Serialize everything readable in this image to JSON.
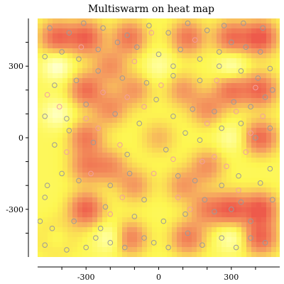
{
  "chart_data": {
    "type": "heatmap",
    "title": "Multiswarm on heat map",
    "xlabel": "",
    "ylabel": "",
    "xlim": [
      -500,
      500
    ],
    "ylim": [
      -500,
      500
    ],
    "x_ticks": [
      -300,
      0,
      300
    ],
    "y_ticks": [
      300,
      0,
      -300
    ],
    "x_minor_step": 100,
    "y_minor_step": 100,
    "grid": false,
    "colors": {
      "high": "#f06050",
      "mid_high": "#f5a060",
      "mid": "#fdf050",
      "low": "#ffffa0",
      "lowest": "#ffffff",
      "particle_gray": "#9a9a9a",
      "particle_pink": "#f2a0a0"
    },
    "peaks": [
      {
        "x": -420,
        "y": 420,
        "level": 0.85
      },
      {
        "x": -300,
        "y": 420,
        "level": 0.9
      },
      {
        "x": -120,
        "y": 420,
        "level": 0.75
      },
      {
        "x": 120,
        "y": 420,
        "level": 0.75
      },
      {
        "x": 300,
        "y": 420,
        "level": 0.8
      },
      {
        "x": 420,
        "y": 420,
        "level": 1.0
      },
      {
        "x": -300,
        "y": 200,
        "level": 0.8
      },
      {
        "x": 300,
        "y": 200,
        "level": 0.75
      },
      {
        "x": 420,
        "y": 200,
        "level": 0.85
      },
      {
        "x": 420,
        "y": 0,
        "level": 0.85
      },
      {
        "x": 300,
        "y": -300,
        "level": 0.85
      },
      {
        "x": 420,
        "y": -300,
        "level": 0.95
      },
      {
        "x": -300,
        "y": -300,
        "level": 0.9
      },
      {
        "x": -420,
        "y": -420,
        "level": 0.85
      },
      {
        "x": -120,
        "y": -420,
        "level": 0.7
      },
      {
        "x": 120,
        "y": -420,
        "level": 0.7
      },
      {
        "x": 420,
        "y": -420,
        "level": 0.85
      },
      {
        "x": -200,
        "y": 120,
        "level": 0.55
      },
      {
        "x": 200,
        "y": 120,
        "level": 0.55
      },
      {
        "x": -200,
        "y": -120,
        "level": 0.55
      },
      {
        "x": 200,
        "y": -120,
        "level": 0.55
      },
      {
        "x": -100,
        "y": 200,
        "level": 0.5
      },
      {
        "x": 100,
        "y": 200,
        "level": 0.5
      },
      {
        "x": -100,
        "y": -200,
        "level": 0.5
      },
      {
        "x": 100,
        "y": -200,
        "level": 0.5
      },
      {
        "x": 0,
        "y": 0,
        "level": 0.35
      },
      {
        "x": -300,
        "y": 0,
        "level": 0.7
      },
      {
        "x": -300,
        "y": -120,
        "level": 0.6
      },
      {
        "x": 200,
        "y": -300,
        "level": 0.6
      },
      {
        "x": -200,
        "y": 300,
        "level": 0.55
      }
    ],
    "valleys": [
      {
        "x": -420,
        "y": -420,
        "level": 0.9
      },
      {
        "x": -420,
        "y": 300,
        "level": 0.6
      },
      {
        "x": 300,
        "y": 300,
        "level": 0.5
      },
      {
        "x": -420,
        "y": 100,
        "level": 0.5
      },
      {
        "x": 0,
        "y": 300,
        "level": 0.35
      },
      {
        "x": 300,
        "y": 0,
        "level": 0.35
      },
      {
        "x": 300,
        "y": -420,
        "level": 0.45
      },
      {
        "x": -200,
        "y": -420,
        "level": 0.5
      }
    ],
    "particles_gray": [
      [
        -490,
        -350
      ],
      [
        -470,
        -450
      ],
      [
        -440,
        -380
      ],
      [
        -380,
        -470
      ],
      [
        -300,
        -460
      ],
      [
        -260,
        -420
      ],
      [
        -240,
        -380
      ],
      [
        -200,
        -440
      ],
      [
        -140,
        -460
      ],
      [
        -60,
        -420
      ],
      [
        -20,
        -440
      ],
      [
        40,
        -460
      ],
      [
        120,
        -400
      ],
      [
        180,
        -450
      ],
      [
        260,
        -420
      ],
      [
        320,
        -460
      ],
      [
        380,
        -420
      ],
      [
        440,
        -440
      ],
      [
        -100,
        -330
      ],
      [
        20,
        -350
      ],
      [
        110,
        -320
      ],
      [
        230,
        -310
      ],
      [
        300,
        -300
      ],
      [
        340,
        -270
      ],
      [
        -460,
        -200
      ],
      [
        -400,
        -150
      ],
      [
        -330,
        -180
      ],
      [
        -200,
        -200
      ],
      [
        -120,
        -150
      ],
      [
        80,
        -160
      ],
      [
        150,
        -180
      ],
      [
        260,
        -200
      ],
      [
        330,
        -160
      ],
      [
        420,
        -190
      ],
      [
        460,
        -130
      ],
      [
        -430,
        -30
      ],
      [
        -370,
        30
      ],
      [
        -270,
        -20
      ],
      [
        -130,
        -70
      ],
      [
        30,
        -50
      ],
      [
        170,
        -10
      ],
      [
        260,
        40
      ],
      [
        340,
        60
      ],
      [
        400,
        0
      ],
      [
        460,
        40
      ],
      [
        -470,
        90
      ],
      [
        -380,
        80
      ],
      [
        -300,
        140
      ],
      [
        -180,
        100
      ],
      [
        -80,
        60
      ],
      [
        60,
        90
      ],
      [
        140,
        120
      ],
      [
        230,
        110
      ],
      [
        310,
        150
      ],
      [
        380,
        130
      ],
      [
        440,
        170
      ],
      [
        470,
        200
      ],
      [
        -430,
        220
      ],
      [
        -340,
        240
      ],
      [
        -250,
        280
      ],
      [
        -150,
        250
      ],
      [
        -50,
        230
      ],
      [
        60,
        260
      ],
      [
        170,
        240
      ],
      [
        250,
        300
      ],
      [
        340,
        280
      ],
      [
        410,
        250
      ],
      [
        460,
        290
      ],
      [
        -470,
        340
      ],
      [
        -400,
        360
      ],
      [
        -330,
        330
      ],
      [
        -250,
        370
      ],
      [
        -170,
        400
      ],
      [
        -90,
        380
      ],
      [
        0,
        350
      ],
      [
        90,
        370
      ],
      [
        170,
        330
      ],
      [
        250,
        360
      ],
      [
        300,
        400
      ],
      [
        360,
        380
      ],
      [
        420,
        360
      ],
      [
        -450,
        460
      ],
      [
        -370,
        440
      ],
      [
        -310,
        480
      ],
      [
        -230,
        460
      ],
      [
        -130,
        430
      ],
      [
        -40,
        470
      ],
      [
        40,
        440
      ],
      [
        120,
        480
      ],
      [
        200,
        450
      ],
      [
        270,
        470
      ],
      [
        350,
        480
      ],
      [
        430,
        460
      ],
      [
        -10,
        160
      ],
      [
        110,
        20
      ],
      [
        -220,
        -290
      ],
      [
        -350,
        -350
      ],
      [
        380,
        -350
      ],
      [
        190,
        -260
      ],
      [
        -470,
        -250
      ],
      [
        470,
        -260
      ],
      [
        -60,
        -260
      ],
      [
        60,
        300
      ]
    ],
    "particles_pink": [
      [
        -410,
        130
      ],
      [
        -300,
        80
      ],
      [
        -280,
        -150
      ],
      [
        -230,
        190
      ],
      [
        -160,
        -30
      ],
      [
        -130,
        170
      ],
      [
        -60,
        130
      ],
      [
        -20,
        -150
      ],
      [
        60,
        -90
      ],
      [
        130,
        -300
      ],
      [
        200,
        60
      ],
      [
        230,
        -80
      ],
      [
        320,
        110
      ],
      [
        360,
        -60
      ],
      [
        400,
        210
      ],
      [
        430,
        90
      ],
      [
        -380,
        -60
      ],
      [
        -200,
        -320
      ],
      [
        -100,
        320
      ],
      [
        240,
        240
      ],
      [
        330,
        -220
      ],
      [
        -460,
        180
      ],
      [
        150,
        410
      ],
      [
        -30,
        440
      ],
      [
        80,
        -250
      ],
      [
        -250,
        40
      ],
      [
        380,
        20
      ],
      [
        280,
        -120
      ],
      [
        -150,
        -250
      ],
      [
        10,
        220
      ],
      [
        -320,
        380
      ],
      [
        180,
        -100
      ]
    ]
  }
}
